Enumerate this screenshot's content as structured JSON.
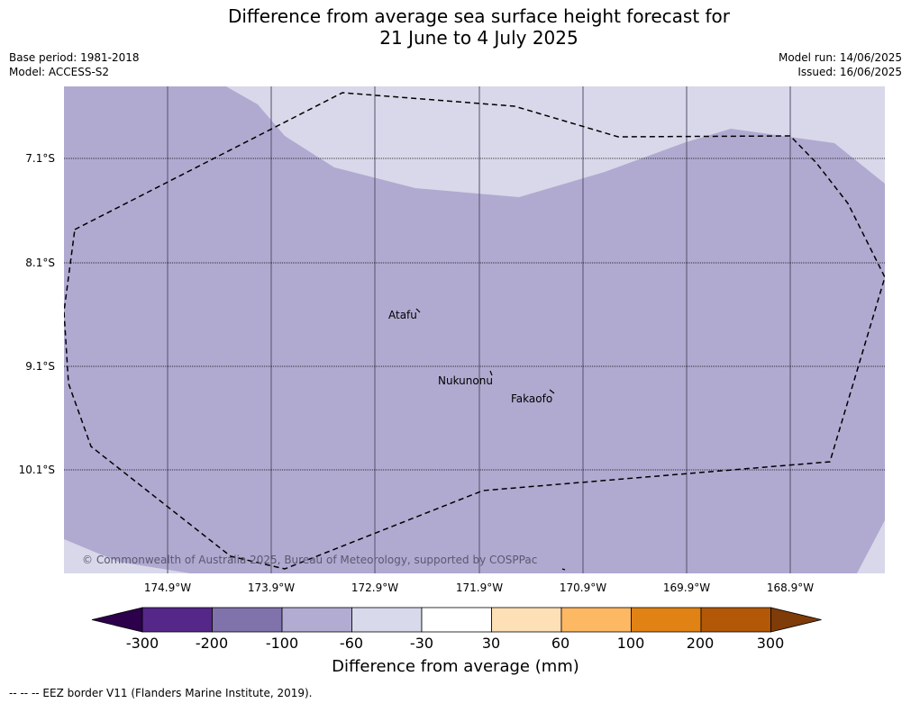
{
  "header": {
    "title_line1": "Difference from average sea surface height forecast for",
    "title_line2": "21 June to 4 July 2025",
    "base_period": "Base period: 1981-2018",
    "model": "Model: ACCESS-S2",
    "model_run": "Model run: 14/06/2025",
    "issued": "Issued: 16/06/2025"
  },
  "map": {
    "latitude_labels": [
      "7.1°S",
      "8.1°S",
      "9.1°S",
      "10.1°S"
    ],
    "longitude_labels": [
      "174.9°W",
      "173.9°W",
      "172.9°W",
      "171.9°W",
      "170.9°W",
      "169.9°W",
      "168.9°W"
    ],
    "places": [
      "Atafu",
      "Nukunonu",
      "Fakaofo"
    ],
    "copyright": "© Commonwealth of Australia 2025, Bureau of Meteorology, supported by COSPPac",
    "colors": {
      "neg_60_to_100": "#b0aad1",
      "neg_30_to_60": "#d8d8ea"
    }
  },
  "colorbar": {
    "ticks": [
      "-300",
      "-200",
      "-100",
      "-60",
      "-30",
      "30",
      "60",
      "100",
      "200",
      "300"
    ],
    "colors": [
      "#2d004b",
      "#542788",
      "#8073ac",
      "#b2abd2",
      "#d8daeb",
      "#ffffff",
      "#fee0b6",
      "#fdb863",
      "#e08214",
      "#b35806",
      "#7f3b08"
    ],
    "label": "Difference from average (mm)"
  },
  "footer": {
    "legend_note": "--  --  -- EEZ border V11 (Flanders Marine Institute, 2019)."
  }
}
